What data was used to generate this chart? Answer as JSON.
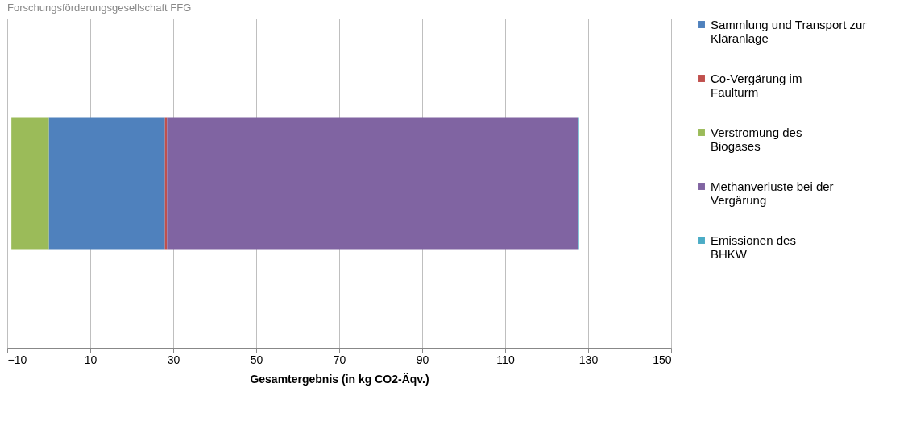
{
  "chart_data": {
    "type": "bar",
    "orientation": "horizontal",
    "stacked": true,
    "categories": [
      null
    ],
    "series": [
      {
        "name": "Sammlung und Transport zur Kläranlage",
        "color": "#4f81bd",
        "values": [
          28
        ]
      },
      {
        "name": "Co-Vergärung im Faulturm",
        "color": "#c0504d",
        "values": [
          0.5
        ]
      },
      {
        "name": "Verstromung des Biogases",
        "color": "#9bbb59",
        "values": [
          -9
        ]
      },
      {
        "name": "Methanverluste bei der Vergärung",
        "color": "#8064a2",
        "values": [
          99
        ]
      },
      {
        "name": "Emissionen des BHKW",
        "color": "#4bacc6",
        "values": [
          0.3
        ]
      }
    ],
    "xlabel": "Gesamtergebnis  (in kg CO2-Äqv.)",
    "xlim": [
      -10,
      150
    ],
    "xticks": [
      -10,
      10,
      30,
      50,
      70,
      90,
      110,
      130,
      150
    ],
    "grid": "x",
    "legend": "right",
    "tick_labels": "x",
    "annotations": [
      "Forschungsförderungsgesellschaft FFG"
    ]
  }
}
